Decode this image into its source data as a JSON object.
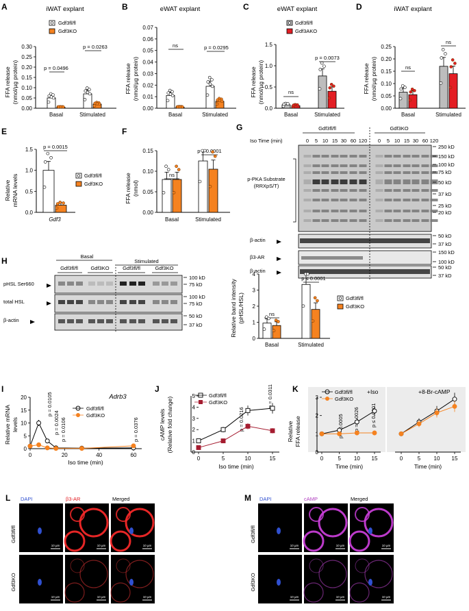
{
  "colors": {
    "orange": "#f58220",
    "red": "#e31e24",
    "gray": "#bdbdbd",
    "darkred": "#a51c30",
    "purple": "#b040c0",
    "blue": "#3050d0"
  },
  "panels": {
    "A": {
      "letter": "A",
      "title": "iWAT explant",
      "ylabel": [
        "FFA release",
        "(nmol/µg protein)"
      ],
      "yticks": [
        "0.00",
        "0.05",
        "0.10",
        "0.15",
        "0.20",
        "0.25",
        "0.30"
      ],
      "xcats": [
        "Basal",
        "Stimulated"
      ],
      "p1": "p = 0.0496",
      "p2": "p = 0.0263",
      "legend": [
        "Gdf3fl/fl",
        "Gdf3KO"
      ]
    },
    "B": {
      "letter": "B",
      "title": "eWAT explant",
      "ylabel": [
        "FFA release",
        "(nmol/µg protein)"
      ],
      "yticks": [
        "0.00",
        "0.01",
        "0.02",
        "0.03",
        "0.04",
        "0.05",
        "0.06",
        "0.07"
      ],
      "xcats": [
        "Basal",
        "Stimulated"
      ],
      "p1": "ns",
      "p2": "p = 0.0295"
    },
    "C": {
      "letter": "C",
      "title": "eWAT explant",
      "ylabel": [
        "FFA release",
        "(nmol/µg protein)"
      ],
      "yticks": [
        "0.0",
        "0.5",
        "1.0",
        "1.5"
      ],
      "xcats": [
        "Basal",
        "Stimulated"
      ],
      "p1": "ns",
      "p2": "p = 0.0073",
      "legend": [
        "Gdf3fl/fl",
        "Gdf3AKO"
      ]
    },
    "D": {
      "letter": "D",
      "title": "iWAT explant",
      "ylabel": [
        "FFA release",
        "(nmol/µg protein)"
      ],
      "yticks": [
        "0.00",
        "0.05",
        "0.10",
        "0.15",
        "0.20",
        "0.25"
      ],
      "xcats": [
        "Basal",
        "Stimulated"
      ],
      "p1": "ns",
      "p2": "ns"
    },
    "E": {
      "letter": "E",
      "ylabel": [
        "Relative",
        "mRNA levels"
      ],
      "yticks": [
        "0.0",
        "0.5",
        "1.0",
        "1.5"
      ],
      "xlabel": "Gdf3",
      "p1": "p = 0.0015",
      "legend": [
        "Gdf3fl/fl",
        "Gdf3KO"
      ]
    },
    "F": {
      "letter": "F",
      "ylabel": [
        "FFA release",
        "(nmol)"
      ],
      "yticks": [
        "0.00",
        "0.05",
        "0.10",
        "0.15"
      ],
      "xcats": [
        "Basal",
        "Stimulated"
      ],
      "p1": "ns",
      "p2": "p ≤ 0.0001"
    },
    "G": {
      "letter": "G",
      "groups": [
        "Gdf3fl/fl",
        "Gdf3KO"
      ],
      "iso_label": "Iso Time (min)",
      "times": [
        "0",
        "5",
        "10",
        "15",
        "30",
        "60",
        "120",
        "0",
        "5",
        "10",
        "15",
        "30",
        "60",
        "120"
      ],
      "band_labels": [
        "p-PKA Substrate",
        "(RRXpS/T)",
        "β-actin",
        "β3-AR",
        "β-actin"
      ],
      "mw": [
        "250 kD",
        "150 kD",
        "100 kD",
        "75 kD",
        "50 kD",
        "37 kD",
        "25 kD",
        "20 kD",
        "50 kD",
        "37 kD",
        "150 kD",
        "100 kD",
        "50 kD",
        "37 kD"
      ]
    },
    "H": {
      "letter": "H",
      "cond": [
        "Basal",
        "Stimulated"
      ],
      "groups": [
        "Gdf3fl/fl",
        "Gdf3KO",
        "Gdf3fl/fl",
        "Gdf3KO"
      ],
      "band_labels": [
        "pHSL Ser660",
        "total HSL",
        "β-actin"
      ],
      "mw": [
        "100 kD",
        "75 kD",
        "100 kD",
        "75 kD",
        "50 kD",
        "37 kD"
      ],
      "ylabel": [
        "Relative band intensity",
        "(pHSL/HSL)"
      ],
      "yticks": [
        "0",
        "1",
        "2",
        "3",
        "4"
      ],
      "xcats": [
        "Basal",
        "Stimulated"
      ],
      "p1": "ns",
      "p2": "p ≤ 0.0001",
      "legend": [
        "Gdf3fl/fl",
        "Gdf3KO"
      ]
    },
    "I": {
      "letter": "I",
      "title": "Adrb3",
      "ylabel": [
        "Relative mRNA",
        "levels"
      ],
      "xlabel": "Iso time (min)",
      "yticks": [
        "0",
        "5",
        "10",
        "15",
        "20"
      ],
      "xticks": [
        "0",
        "20",
        "40",
        "60"
      ],
      "pvals": [
        "p = 0.0105",
        "p = 0.0024",
        "p = 0.0106",
        "p = 0.0376"
      ],
      "legend": [
        "Gdf3fl/fl",
        "Gdf3KO"
      ]
    },
    "J": {
      "letter": "J",
      "ylabel": [
        "cAMP levels",
        "(Relative fold change)"
      ],
      "xlabel": "Iso time (min)",
      "yticks": [
        "0",
        "1",
        "2",
        "3",
        "4",
        "5"
      ],
      "xticks": [
        "0",
        "5",
        "10",
        "15"
      ],
      "pvals": [
        "p = 0.0216",
        "p = 0.0311"
      ],
      "legend": [
        "Gdf3fl/fl",
        "Gdf3KO"
      ]
    },
    "K": {
      "letter": "K",
      "ylabel": [
        "Relative",
        "FFA release"
      ],
      "xlabel": "Time (min)",
      "yticks": [
        "0",
        "1",
        "2",
        "3"
      ],
      "xticks": [
        "0",
        "5",
        "10",
        "15"
      ],
      "sub1": "+Iso",
      "sub2": "+8-Br-cAMP",
      "pvals": [
        "p = 0.0005",
        "p = 0.0026",
        "p ≤ 0.0001"
      ],
      "legend": [
        "Gdf3fl/fl",
        "Gdf3KO"
      ]
    },
    "L": {
      "letter": "L",
      "cols": [
        "DAPI",
        "β3-AR",
        "Merged"
      ],
      "rows": [
        "Gdf3fl/fl",
        "Gdf3KO"
      ],
      "scale": "10 µm"
    },
    "M": {
      "letter": "M",
      "cols": [
        "DAPI",
        "cAMP",
        "Merged"
      ],
      "rows": [
        "Gdf3fl/fl",
        "Gdf3KO"
      ],
      "scale": "10 µm"
    }
  },
  "chart_data": [
    {
      "panel": "A",
      "type": "bar",
      "title": "iWAT explant",
      "categories": [
        "Basal",
        "Stimulated"
      ],
      "series": [
        {
          "name": "Gdf3fl/fl",
          "values": [
            0.05,
            0.07
          ]
        },
        {
          "name": "Gdf3KO",
          "values": [
            0.005,
            0.02
          ]
        }
      ],
      "ylim": [
        0,
        0.3
      ]
    },
    {
      "panel": "B",
      "type": "bar",
      "title": "eWAT explant",
      "categories": [
        "Basal",
        "Stimulated"
      ],
      "series": [
        {
          "name": "Gdf3fl/fl",
          "values": [
            0.011,
            0.019
          ]
        },
        {
          "name": "Gdf3KO",
          "values": [
            0.001,
            0.006
          ]
        }
      ],
      "ylim": [
        0,
        0.07
      ]
    },
    {
      "panel": "C",
      "type": "bar",
      "title": "eWAT explant",
      "categories": [
        "Basal",
        "Stimulated"
      ],
      "series": [
        {
          "name": "Gdf3fl/fl",
          "values": [
            0.08,
            0.76
          ]
        },
        {
          "name": "Gdf3AKO",
          "values": [
            0.06,
            0.4
          ]
        }
      ],
      "ylim": [
        0,
        1.5
      ]
    },
    {
      "panel": "D",
      "type": "bar",
      "title": "iWAT explant",
      "categories": [
        "Basal",
        "Stimulated"
      ],
      "series": [
        {
          "name": "Gdf3fl/fl",
          "values": [
            0.065,
            0.17
          ]
        },
        {
          "name": "Gdf3KO",
          "values": [
            0.055,
            0.14
          ]
        }
      ],
      "ylim": [
        0,
        0.25
      ]
    },
    {
      "panel": "E",
      "type": "bar",
      "categories": [
        "Gdf3"
      ],
      "series": [
        {
          "name": "Gdf3fl/fl",
          "values": [
            1.0
          ]
        },
        {
          "name": "Gdf3KO",
          "values": [
            0.17
          ]
        }
      ],
      "ylim": [
        0,
        1.5
      ]
    },
    {
      "panel": "F",
      "type": "bar",
      "categories": [
        "Basal",
        "Stimulated"
      ],
      "series": [
        {
          "name": "Gdf3fl/fl",
          "values": [
            0.08,
            0.125
          ]
        },
        {
          "name": "Gdf3KO",
          "values": [
            0.08,
            0.105
          ]
        }
      ],
      "ylim": [
        0,
        0.15
      ]
    },
    {
      "panel": "H",
      "type": "bar",
      "categories": [
        "Basal",
        "Stimulated"
      ],
      "series": [
        {
          "name": "Gdf3fl/fl",
          "values": [
            0.95,
            3.35
          ]
        },
        {
          "name": "Gdf3KO",
          "values": [
            0.8,
            1.8
          ]
        }
      ],
      "ylim": [
        0,
        4
      ]
    },
    {
      "panel": "I",
      "type": "line",
      "title": "Adrb3",
      "x": [
        0,
        5,
        10,
        15,
        30,
        60
      ],
      "series": [
        {
          "name": "Gdf3fl/fl",
          "values": [
            1,
            10,
            3,
            0.3,
            0.2,
            0.3
          ]
        },
        {
          "name": "Gdf3KO",
          "values": [
            1,
            1.5,
            0.3,
            0.1,
            0.1,
            1.1
          ]
        }
      ],
      "ylim": [
        0,
        20
      ]
    },
    {
      "panel": "J",
      "type": "line",
      "x": [
        0,
        5,
        10,
        15
      ],
      "series": [
        {
          "name": "Gdf3fl/fl",
          "values": [
            1.0,
            2.0,
            3.7,
            3.9
          ]
        },
        {
          "name": "Gdf3KO",
          "values": [
            0.4,
            1.0,
            2.3,
            1.9
          ]
        }
      ],
      "ylim": [
        0,
        5
      ]
    },
    {
      "panel": "K",
      "type": "line",
      "subtitle": "+Iso",
      "x": [
        0,
        5,
        10,
        15
      ],
      "series": [
        {
          "name": "Gdf3fl/fl",
          "values": [
            1.0,
            1.2,
            1.65,
            2.25
          ]
        },
        {
          "name": "Gdf3KO",
          "values": [
            1.0,
            1.0,
            1.05,
            1.05
          ]
        }
      ],
      "ylim": [
        0,
        3
      ]
    },
    {
      "panel": "K",
      "type": "line",
      "subtitle": "+8-Br-cAMP",
      "x": [
        0,
        5,
        10,
        15
      ],
      "series": [
        {
          "name": "Gdf3fl/fl",
          "values": [
            1.0,
            1.65,
            2.25,
            2.9
          ]
        },
        {
          "name": "Gdf3KO",
          "values": [
            1.0,
            1.55,
            2.15,
            2.5
          ]
        }
      ],
      "ylim": [
        0,
        3
      ]
    }
  ]
}
